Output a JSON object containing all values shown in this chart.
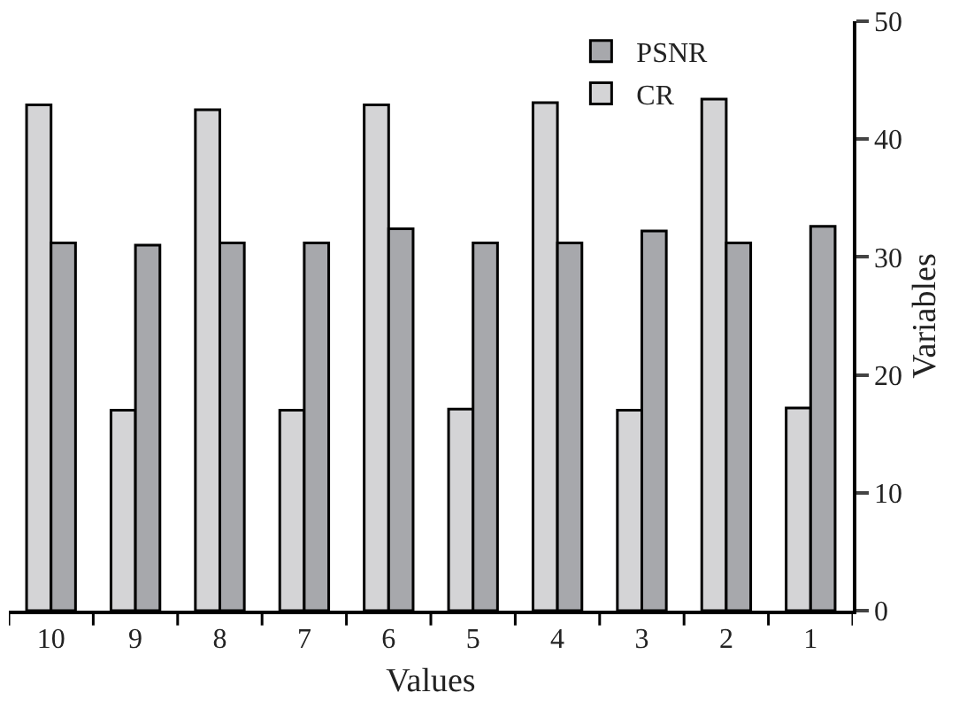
{
  "chart_data": {
    "type": "bar",
    "xlabel": "Values",
    "ylabel": "Variables",
    "categories": [
      "10",
      "9",
      "8",
      "7",
      "6",
      "5",
      "4",
      "3",
      "2",
      "1"
    ],
    "series": [
      {
        "name": "CR",
        "color": "#d4d4d6",
        "values": [
          42.9,
          17.0,
          42.5,
          17.0,
          42.9,
          17.1,
          43.1,
          17.0,
          43.4,
          17.2
        ]
      },
      {
        "name": "PSNR",
        "color": "#a7a8ac",
        "values": [
          31.2,
          31.0,
          31.2,
          31.2,
          32.4,
          31.2,
          31.2,
          32.2,
          31.2,
          32.6
        ]
      }
    ],
    "ylim": [
      0,
      50
    ],
    "yticks": [
      0,
      10,
      20,
      30,
      40,
      50
    ],
    "legend": "top right"
  }
}
